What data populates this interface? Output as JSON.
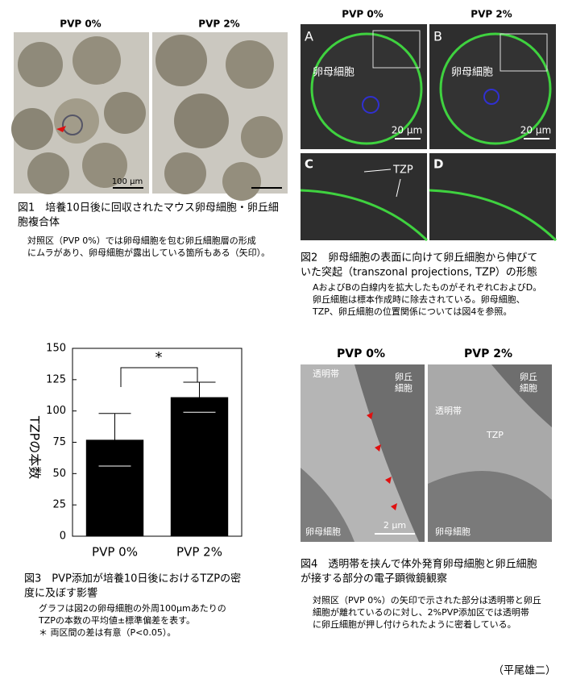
{
  "figure1": {
    "labels": [
      "PVP 0%",
      "PVP 2%"
    ],
    "scale_bar": "100 µm",
    "caption_title": [
      "図1　培養10日後に回収されたマウス卵母細胞・卵丘細",
      "胞複合体"
    ],
    "caption_body": [
      "対照区（PVP 0%）では卵母細胞を包む卵丘細胞層の形成",
      "にムラがあり、卵母細胞が露出している箇所もある（矢印）。"
    ]
  },
  "figure2": {
    "labels": [
      "PVP 0%",
      "PVP 2%"
    ],
    "panels": [
      "A",
      "B",
      "C",
      "D"
    ],
    "oocyte": "卵母細胞",
    "scale_bar": "20 µm",
    "tzp": "TZP",
    "caption_title": [
      "図2　卵母細胞の表面に向けて卵丘細胞から伸びて",
      "いた突起（transzonal projections, TZP）の形態"
    ],
    "caption_body": [
      "AおよびBの白線内を拡大したものがそれぞれCおよびD。",
      "卵丘細胞は標本作成時に除去されている。卵母細胞、",
      "TZP、卵丘細胞の位置関係については図4を参照。"
    ]
  },
  "chart_data": {
    "type": "bar",
    "categories": [
      "PVP 0%",
      "PVP 2%"
    ],
    "values": [
      77,
      111
    ],
    "errors": [
      21,
      12
    ],
    "color": "#000000",
    "ylabel": "TZPの本数",
    "annotation": "*",
    "ylim": [
      0,
      150
    ],
    "yticks": [
      0,
      25,
      50,
      75,
      100,
      125,
      150
    ],
    "caption_title": [
      "図3　PVP添加が培養10日後におけるTZPの密",
      "度に及ぼす影響"
    ],
    "caption_body": [
      "グラフは図2の卵母細胞の外周100µmあたりの",
      "TZPの本数の平均値±標準偏差を表す。",
      "＊ 両区間の差は有意（P<0.05）。"
    ]
  },
  "figure4": {
    "labels": [
      "PVP 0%",
      "PVP 2%"
    ],
    "zona": "透明帯",
    "cumulus": [
      "卵丘",
      "細胞"
    ],
    "oocyte": "卵母細胞",
    "scale_bar": "2 µm",
    "tzp": "TZP",
    "caption_title": [
      "図4　透明帯を挟んで体外発育卵母細胞と卵丘細胞",
      "が接する部分の電子顕微鏡観察"
    ],
    "caption_body": [
      "対照区（PVP 0%）の矢印で示された部分は透明帯と卵丘",
      "細胞が離れているのに対し、2%PVP添加区では透明帯",
      "に卵丘細胞が押し付けられたように密着している。"
    ]
  },
  "author": "（平尾雄二）"
}
